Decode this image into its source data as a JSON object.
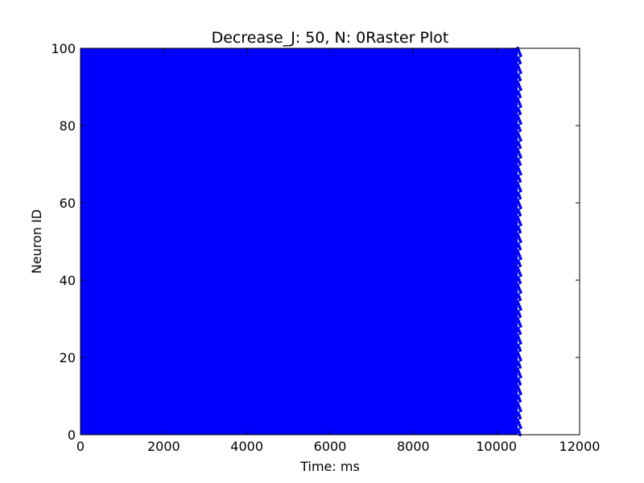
{
  "chart_data": {
    "type": "scatter",
    "title": "Decrease_J: 50, N: 0Raster Plot",
    "xlabel": "Time: ms",
    "ylabel": "Neuron ID",
    "xlim": [
      0,
      12000
    ],
    "ylim": [
      0,
      100
    ],
    "xticks": [
      "0",
      "2000",
      "4000",
      "6000",
      "8000",
      "10000",
      "12000"
    ],
    "yticks": [
      "0",
      "20",
      "40",
      "60",
      "80",
      "100"
    ],
    "grid": false,
    "legend": "none",
    "series": [
      {
        "neuron_id_range": [
          0,
          100
        ],
        "spike_time_range_ms": [
          0,
          10550
        ],
        "color": "#0000ff",
        "marker": "dot",
        "density": "saturated"
      }
    ]
  },
  "colors": {
    "spikes": "#0000ff",
    "axes": "#000000",
    "background": "#ffffff"
  }
}
